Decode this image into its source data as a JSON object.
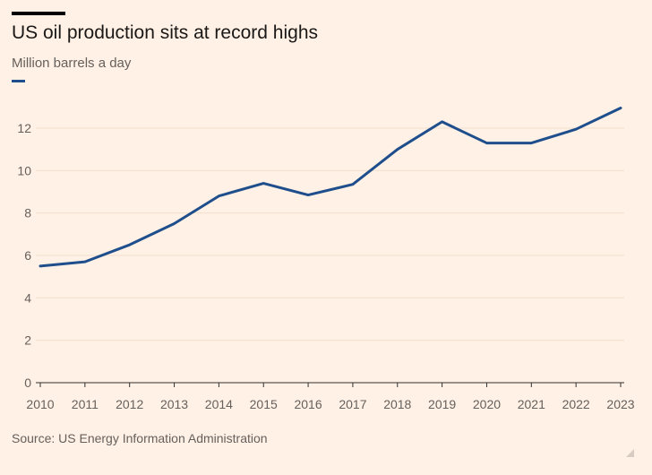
{
  "header": {
    "title": "US oil production sits at record highs",
    "subtitle": "Million barrels a day"
  },
  "footer": {
    "source": "Source: US Energy Information Administration"
  },
  "colors": {
    "background": "#FFF1E5",
    "line": "#1F4E8C",
    "grid": "#F2DFCE",
    "baseline": "#33302E",
    "tick_text": "#66605C"
  },
  "chart_data": {
    "type": "line",
    "title": "US oil production sits at record highs",
    "subtitle": "Million barrels a day",
    "xlabel": "",
    "ylabel": "",
    "x": [
      2010,
      2011,
      2012,
      2013,
      2014,
      2015,
      2016,
      2017,
      2018,
      2019,
      2020,
      2021,
      2022,
      2023
    ],
    "series": [
      {
        "values": [
          5.5,
          5.7,
          6.5,
          7.5,
          8.8,
          9.4,
          8.85,
          9.35,
          11.0,
          12.3,
          11.3,
          11.3,
          11.95,
          12.95
        ]
      }
    ],
    "ylim": [
      0,
      13
    ],
    "xlim": [
      2010,
      2023
    ],
    "yticks": [
      0,
      2,
      4,
      6,
      8,
      10,
      12
    ],
    "xticks": [
      "2010",
      "2011",
      "2012",
      "2013",
      "2014",
      "2015",
      "2016",
      "2017",
      "2018",
      "2019",
      "2020",
      "2021",
      "2022",
      "2023"
    ],
    "grid": true,
    "legend": "top-left"
  }
}
